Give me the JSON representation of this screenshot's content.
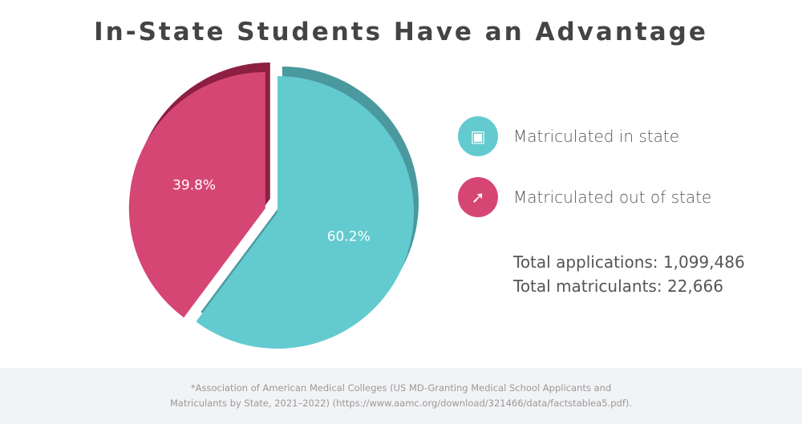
{
  "chart_data": {
    "type": "pie",
    "title": "In-State Students Have an Advantage",
    "slices": [
      {
        "label": "Matriculated in state",
        "value": 60.2,
        "display": "60.2%",
        "color": "#63cbd0",
        "edge_color": "#4a999e",
        "icon": "stacked-blocks-icon"
      },
      {
        "label": "Matriculated out of state",
        "value": 39.8,
        "display": "39.8%",
        "color": "#d64674",
        "edge_color": "#8c1f42",
        "icon": "blocks-arrow-icon"
      }
    ],
    "legend_position": "right",
    "exploded_slice": "Matriculated out of state"
  },
  "totals": {
    "applications": "Total applications: 1,099,486",
    "matriculants": "Total matriculants: 22,666"
  },
  "footnote": {
    "line1": "*Association of American Medical Colleges (US MD-Granting Medical School Applicants and",
    "line2": "Matriculants by State, 2021–2022) (https://www.aamc.org/download/321466/data/factstablea5.pdf)."
  }
}
